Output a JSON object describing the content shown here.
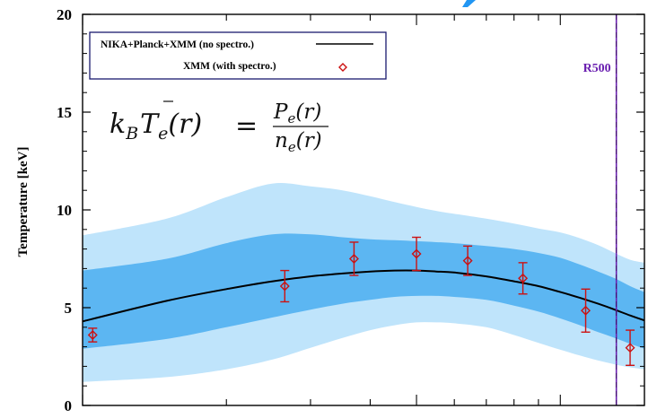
{
  "chart_data": {
    "type": "line",
    "title": "",
    "xlabel": "",
    "ylabel": "Temperature [keV]",
    "ylim": [
      0,
      20
    ],
    "yticks": [
      "0",
      "5",
      "10",
      "15",
      "20"
    ],
    "x_scale": "log",
    "xlim": [
      100,
      1500
    ],
    "grid": false,
    "legend_position": "top-left",
    "colors": {
      "model_line": "#000000",
      "inner_band": "#5cb6f2",
      "outer_band": "#bfe4fb",
      "data_points": "#cc1111",
      "r500_line": "#6a1fb0",
      "corner_mark": "#2196f3"
    },
    "series": [
      {
        "name": "NIKA+Planck+XMM (no spectro.)",
        "kind": "line",
        "x": [
          100,
          150,
          200,
          250,
          300,
          350,
          400,
          450,
          500,
          550,
          600,
          700,
          800,
          900,
          1000,
          1100,
          1200,
          1300,
          1400,
          1500
        ],
        "y": [
          4.3,
          5.35,
          5.95,
          6.35,
          6.6,
          6.75,
          6.85,
          6.9,
          6.9,
          6.85,
          6.8,
          6.6,
          6.35,
          6.1,
          5.8,
          5.5,
          5.2,
          4.9,
          4.6,
          4.35
        ]
      },
      {
        "name": "inner confidence band",
        "kind": "band",
        "x": [
          100,
          150,
          200,
          250,
          300,
          350,
          400,
          450,
          500,
          550,
          600,
          700,
          800,
          900,
          1000,
          1100,
          1200,
          1300,
          1400,
          1500
        ],
        "y_low": [
          2.9,
          3.4,
          4.0,
          4.5,
          4.9,
          5.2,
          5.4,
          5.55,
          5.6,
          5.6,
          5.55,
          5.4,
          5.1,
          4.8,
          4.45,
          4.1,
          3.75,
          3.45,
          3.15,
          2.9
        ],
        "y_high": [
          6.9,
          7.5,
          8.3,
          8.75,
          8.75,
          8.6,
          8.5,
          8.45,
          8.4,
          8.35,
          8.3,
          8.15,
          8.0,
          7.8,
          7.55,
          7.2,
          6.85,
          6.5,
          6.1,
          5.8
        ]
      },
      {
        "name": "outer confidence band",
        "kind": "band",
        "x": [
          100,
          150,
          200,
          250,
          300,
          350,
          400,
          450,
          500,
          550,
          600,
          700,
          800,
          900,
          1000,
          1100,
          1200,
          1300,
          1400,
          1500
        ],
        "y_low": [
          1.2,
          1.45,
          1.85,
          2.35,
          2.95,
          3.45,
          3.85,
          4.1,
          4.25,
          4.25,
          4.2,
          4.0,
          3.6,
          3.2,
          2.85,
          2.55,
          2.3,
          2.1,
          1.95,
          1.85
        ],
        "y_high": [
          8.7,
          9.55,
          10.65,
          11.35,
          11.2,
          11.0,
          10.7,
          10.4,
          10.15,
          9.95,
          9.8,
          9.55,
          9.3,
          9.05,
          8.85,
          8.55,
          8.2,
          7.8,
          7.45,
          7.3
        ]
      },
      {
        "name": "XMM (with spectro.)",
        "kind": "scatter",
        "points": [
          {
            "x": 105,
            "y": 3.6,
            "err": 0.35
          },
          {
            "x": 265,
            "y": 6.1,
            "err": 0.8
          },
          {
            "x": 370,
            "y": 7.5,
            "err": 0.85
          },
          {
            "x": 500,
            "y": 7.75,
            "err": 0.85
          },
          {
            "x": 640,
            "y": 7.4,
            "err": 0.75
          },
          {
            "x": 835,
            "y": 6.5,
            "err": 0.8
          },
          {
            "x": 1130,
            "y": 4.85,
            "err": 1.1
          },
          {
            "x": 1400,
            "y": 2.95,
            "err": 0.9
          }
        ]
      }
    ],
    "vertical_marker": {
      "label": "R500",
      "x": 1310
    },
    "annotation": {
      "lhs": "k_B T_e(r)",
      "numerator": "P_e(r)",
      "denominator": "n_e(r)"
    },
    "legend": [
      {
        "label": "NIKA+Planck+XMM (no spectro.)",
        "symbol": "line"
      },
      {
        "label": "XMM (with spectro.)",
        "symbol": "diamond"
      }
    ]
  }
}
